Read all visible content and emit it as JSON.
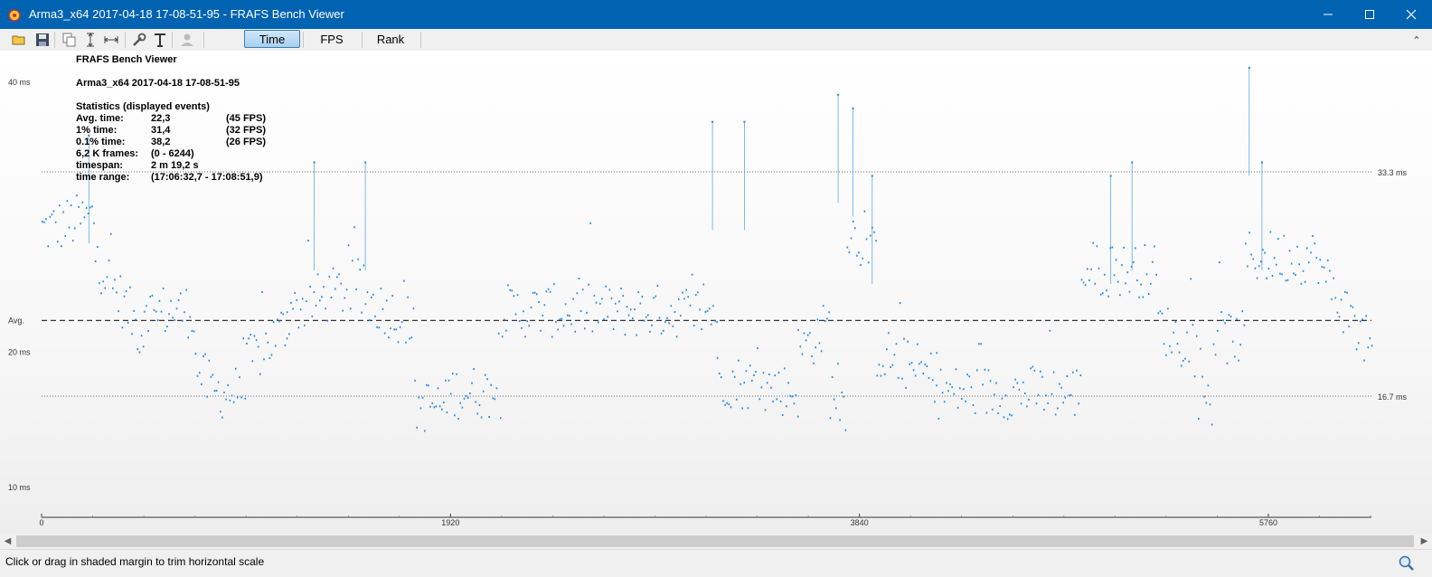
{
  "window": {
    "title": "Arma3_x64 2017-04-18 17-08-51-95 - FRAFS Bench Viewer",
    "app_icon": "frafs-app-icon",
    "controls": [
      "minimize-icon",
      "maximize-icon",
      "close-icon"
    ]
  },
  "toolbar": {
    "icons": [
      "open-folder-icon",
      "save-icon",
      "copy-icon",
      "fit-vertical-icon",
      "fit-horizontal-icon",
      "settings-wrench-icon",
      "text-icon",
      "user-icon"
    ],
    "tabs": [
      {
        "label": "Time",
        "active": true
      },
      {
        "label": "FPS",
        "active": false
      },
      {
        "label": "Rank",
        "active": false
      }
    ]
  },
  "info": {
    "app_name": "FRAFS Bench Viewer",
    "file_name": "Arma3_x64 2017-04-18 17-08-51-95",
    "stats_header": "Statistics (displayed events)",
    "rows": [
      {
        "label": "Avg. time:",
        "value": "22,3",
        "extra": "(45 FPS)"
      },
      {
        "label": "1% time:",
        "value": "31,4",
        "extra": "(32 FPS)"
      },
      {
        "label": "0.1% time:",
        "value": "38,2",
        "extra": "(26 FPS)"
      },
      {
        "label": "6,2 K frames:",
        "value": "(0 - 6244)",
        "extra": ""
      },
      {
        "label": "timespan:",
        "value": "2 m 19,2 s",
        "extra": ""
      },
      {
        "label": "time range:",
        "value": "(17:06:32,7 - 17:08:51,9)",
        "extra": ""
      }
    ]
  },
  "chart_data": {
    "type": "scatter",
    "title": "",
    "xlabel": "",
    "ylabel": "",
    "xlim": [
      0,
      6244
    ],
    "ylim": [
      8,
      42
    ],
    "x_ticks": [
      {
        "value": 0,
        "label": "0"
      },
      {
        "value": 1920,
        "label": "1920"
      },
      {
        "value": 3840,
        "label": "3840"
      },
      {
        "value": 5760,
        "label": "5760"
      }
    ],
    "y_ticks": [
      {
        "value": 40,
        "label": "40 ms"
      },
      {
        "value": 20,
        "label": "20 ms"
      },
      {
        "value": 10,
        "label": "10 ms"
      }
    ],
    "reference_lines": [
      {
        "value": 33.3,
        "label": "33.3 ms",
        "style": "dotted"
      },
      {
        "value": 22.3,
        "label": "Avg.",
        "style": "dashed"
      },
      {
        "value": 16.7,
        "label": "16.7 ms",
        "style": "dotted"
      }
    ],
    "series": [
      {
        "color": "#1e88e5",
        "segments": [
          {
            "x": [
              0,
              250
            ],
            "y": [
              29,
              30
            ]
          },
          {
            "x": [
              250,
              480
            ],
            "y": [
              27,
              21
            ]
          },
          {
            "x": [
              480,
              550
            ],
            "y": [
              24,
              22
            ]
          },
          {
            "x": [
              550,
              720
            ],
            "y": [
              23,
              23
            ]
          },
          {
            "x": [
              720,
              800
            ],
            "y": [
              19,
              17
            ]
          },
          {
            "x": [
              800,
              960
            ],
            "y": [
              17,
              17
            ]
          },
          {
            "x": [
              960,
              1150
            ],
            "y": [
              19,
              22
            ]
          },
          {
            "x": [
              1150,
              1500
            ],
            "y": [
              23,
              25
            ]
          },
          {
            "x": [
              1500,
              1750
            ],
            "y": [
              24,
              22
            ]
          },
          {
            "x": [
              1750,
              1900
            ],
            "y": [
              16,
              16
            ]
          },
          {
            "x": [
              1900,
              2160
            ],
            "y": [
              17,
              17
            ]
          },
          {
            "x": [
              2160,
              3170
            ],
            "y": [
              23,
              23
            ]
          },
          {
            "x": [
              3170,
              3550
            ],
            "y": [
              18,
              17
            ]
          },
          {
            "x": [
              3550,
              3700
            ],
            "y": [
              20,
              22
            ]
          },
          {
            "x": [
              3700,
              3780
            ],
            "y": [
              17,
              16
            ]
          },
          {
            "x": [
              3780,
              3920
            ],
            "y": [
              29,
              27
            ]
          },
          {
            "x": [
              3920,
              4200
            ],
            "y": [
              20,
              18
            ]
          },
          {
            "x": [
              4200,
              4880
            ],
            "y": [
              17,
              17
            ]
          },
          {
            "x": [
              4880,
              5240
            ],
            "y": [
              26,
              26
            ]
          },
          {
            "x": [
              5240,
              5420
            ],
            "y": [
              22,
              20
            ]
          },
          {
            "x": [
              5420,
              5500
            ],
            "y": [
              17,
              16
            ]
          },
          {
            "x": [
              5500,
              5650
            ],
            "y": [
              21,
              21
            ]
          },
          {
            "x": [
              5650,
              6000
            ],
            "y": [
              27,
              27
            ]
          },
          {
            "x": [
              6000,
              6244
            ],
            "y": [
              26,
              20
            ]
          }
        ],
        "spikes": [
          {
            "x": 222,
            "y": 36
          },
          {
            "x": 1280,
            "y": 34
          },
          {
            "x": 1520,
            "y": 34
          },
          {
            "x": 3150,
            "y": 37
          },
          {
            "x": 3300,
            "y": 37
          },
          {
            "x": 3740,
            "y": 39
          },
          {
            "x": 3810,
            "y": 38
          },
          {
            "x": 3900,
            "y": 33
          },
          {
            "x": 5020,
            "y": 33
          },
          {
            "x": 5120,
            "y": 34
          },
          {
            "x": 5670,
            "y": 41
          },
          {
            "x": 5730,
            "y": 34
          }
        ]
      }
    ]
  },
  "scrollbar": {
    "left_arrow": "scroll-left-icon",
    "right_arrow": "scroll-right-icon"
  },
  "status": {
    "message": "Click or drag in shaded margin to trim horizontal scale",
    "zoom_icon": "zoom-icon"
  }
}
